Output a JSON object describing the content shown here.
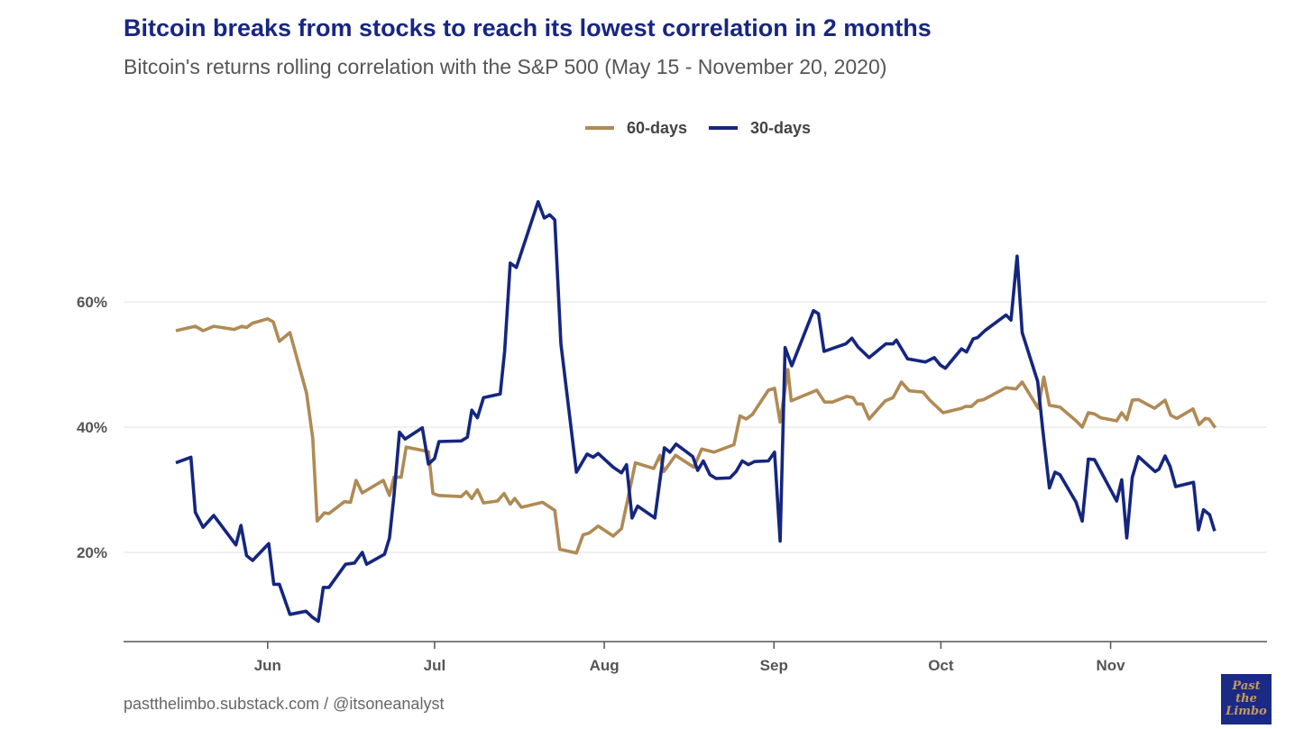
{
  "header": {
    "title": "Bitcoin breaks from stocks to reach its lowest correlation in 2 months",
    "subtitle": "Bitcoin's returns rolling correlation with the S&P 500 (May 15 - November 20, 2020)"
  },
  "footer": {
    "source": "pastthelimbo.substack.com / @itsoneanalyst",
    "logo_text": "Past the Limbo"
  },
  "chart_data": {
    "type": "line",
    "title": "Bitcoin breaks from stocks to reach its lowest correlation in 2 months",
    "xlabel": "",
    "ylabel": "",
    "x_unit": "days since May 15, 2020",
    "ylim": [
      5.8,
      78
    ],
    "y_ticks": [
      {
        "value": 20,
        "label": "20%"
      },
      {
        "value": 40,
        "label": "40%"
      },
      {
        "value": 60,
        "label": "60%"
      }
    ],
    "x_ticks": [
      {
        "value": 16.5,
        "label": "Jun"
      },
      {
        "value": 46.5,
        "label": "Jul"
      },
      {
        "value": 77,
        "label": "Aug"
      },
      {
        "value": 107.5,
        "label": "Sep"
      },
      {
        "value": 137.5,
        "label": "Oct"
      },
      {
        "value": 168,
        "label": "Nov"
      }
    ],
    "grid": true,
    "legend_position": "top-center",
    "series": [
      {
        "name": "60-days",
        "color": "#b08a55",
        "points": [
          [
            0,
            55.4
          ],
          [
            3.5,
            56.1
          ],
          [
            4.9,
            55.4
          ],
          [
            6.8,
            56.1
          ],
          [
            10.5,
            55.6
          ],
          [
            11.9,
            56.1
          ],
          [
            12.7,
            55.9
          ],
          [
            13.8,
            56.6
          ],
          [
            16.5,
            57.3
          ],
          [
            17.5,
            56.8
          ],
          [
            18.6,
            53.7
          ],
          [
            20.5,
            55.1
          ],
          [
            23.5,
            45.4
          ],
          [
            24.6,
            38.2
          ],
          [
            25.4,
            25.0
          ],
          [
            26.7,
            26.3
          ],
          [
            27.5,
            26.2
          ],
          [
            30.3,
            28.1
          ],
          [
            31.4,
            28.0
          ],
          [
            32.4,
            31.5
          ],
          [
            33.5,
            29.5
          ],
          [
            37.3,
            31.5
          ],
          [
            38.4,
            29.1
          ],
          [
            39.2,
            32.0
          ],
          [
            40.5,
            32.0
          ],
          [
            41.4,
            36.8
          ],
          [
            45.4,
            36.1
          ],
          [
            46.2,
            29.4
          ],
          [
            47.2,
            29.1
          ],
          [
            51.3,
            28.9
          ],
          [
            52.2,
            29.7
          ],
          [
            53.2,
            28.6
          ],
          [
            54.2,
            30.0
          ],
          [
            55.3,
            27.9
          ],
          [
            57.8,
            28.2
          ],
          [
            59.0,
            29.4
          ],
          [
            60.1,
            27.7
          ],
          [
            60.9,
            28.6
          ],
          [
            62.1,
            27.2
          ],
          [
            65.9,
            28.0
          ],
          [
            68.1,
            26.7
          ],
          [
            69.0,
            20.5
          ],
          [
            72.0,
            19.9
          ],
          [
            73.2,
            22.8
          ],
          [
            74.3,
            23.1
          ],
          [
            75.9,
            24.2
          ],
          [
            78.6,
            22.6
          ],
          [
            80.1,
            23.8
          ],
          [
            82.6,
            34.3
          ],
          [
            85.9,
            33.4
          ],
          [
            87.0,
            35.5
          ],
          [
            87.7,
            32.9
          ],
          [
            89.8,
            35.5
          ],
          [
            93.1,
            33.6
          ],
          [
            94.5,
            36.5
          ],
          [
            96.7,
            36.0
          ],
          [
            100.3,
            37.2
          ],
          [
            101.4,
            41.8
          ],
          [
            102.5,
            41.3
          ],
          [
            103.6,
            42.0
          ],
          [
            106.5,
            45.9
          ],
          [
            107.6,
            46.2
          ],
          [
            108.6,
            40.8
          ],
          [
            110.0,
            49.2
          ],
          [
            110.6,
            44.2
          ],
          [
            115.2,
            45.9
          ],
          [
            116.6,
            44.0
          ],
          [
            118.0,
            44.0
          ],
          [
            120.6,
            44.9
          ],
          [
            121.7,
            44.7
          ],
          [
            122.4,
            43.7
          ],
          [
            123.4,
            43.7
          ],
          [
            124.6,
            41.3
          ],
          [
            127.5,
            44.2
          ],
          [
            128.9,
            44.7
          ],
          [
            130.4,
            47.2
          ],
          [
            131.8,
            45.8
          ],
          [
            134.3,
            45.6
          ],
          [
            135.4,
            44.4
          ],
          [
            137.9,
            42.3
          ],
          [
            141.2,
            43.0
          ],
          [
            141.9,
            43.3
          ],
          [
            143.0,
            43.3
          ],
          [
            144.1,
            44.2
          ],
          [
            145.2,
            44.4
          ],
          [
            149.2,
            46.3
          ],
          [
            151.0,
            46.1
          ],
          [
            152.1,
            47.2
          ],
          [
            155.0,
            43.0
          ],
          [
            156.0,
            48.0
          ],
          [
            157.0,
            43.5
          ],
          [
            158.9,
            43.2
          ],
          [
            161.8,
            41.0
          ],
          [
            162.9,
            40.0
          ],
          [
            164.0,
            42.3
          ],
          [
            165.1,
            42.1
          ],
          [
            166.2,
            41.5
          ],
          [
            169.1,
            41.0
          ],
          [
            170.0,
            42.3
          ],
          [
            170.9,
            41.2
          ],
          [
            171.9,
            44.3
          ],
          [
            173.0,
            44.4
          ],
          [
            175.9,
            43.0
          ],
          [
            177.8,
            44.3
          ],
          [
            178.8,
            41.9
          ],
          [
            179.9,
            41.4
          ],
          [
            182.8,
            42.9
          ],
          [
            183.9,
            40.4
          ],
          [
            185.0,
            41.4
          ],
          [
            185.7,
            41.3
          ],
          [
            186.8,
            39.9
          ]
        ]
      },
      {
        "name": "30-days",
        "color": "#15267f",
        "points": [
          [
            0,
            34.3
          ],
          [
            2.7,
            35.2
          ],
          [
            3.5,
            26.4
          ],
          [
            4.9,
            24.0
          ],
          [
            6.8,
            25.9
          ],
          [
            10.8,
            21.2
          ],
          [
            11.7,
            24.3
          ],
          [
            12.7,
            19.5
          ],
          [
            13.8,
            18.7
          ],
          [
            16.7,
            21.4
          ],
          [
            17.6,
            14.9
          ],
          [
            18.6,
            14.9
          ],
          [
            20.5,
            10.1
          ],
          [
            23.4,
            10.6
          ],
          [
            24.6,
            9.6
          ],
          [
            25.6,
            9.0
          ],
          [
            26.5,
            14.4
          ],
          [
            27.5,
            14.4
          ],
          [
            30.5,
            18.1
          ],
          [
            32.1,
            18.3
          ],
          [
            33.5,
            20.0
          ],
          [
            34.3,
            18.1
          ],
          [
            37.5,
            19.7
          ],
          [
            38.4,
            22.3
          ],
          [
            39.2,
            29.1
          ],
          [
            40.2,
            39.2
          ],
          [
            41.2,
            38.1
          ],
          [
            44.3,
            39.9
          ],
          [
            45.4,
            34.1
          ],
          [
            46.5,
            35.0
          ],
          [
            47.3,
            37.7
          ],
          [
            51.3,
            37.8
          ],
          [
            52.4,
            38.4
          ],
          [
            53.2,
            42.7
          ],
          [
            54.2,
            41.5
          ],
          [
            55.3,
            44.7
          ],
          [
            58.3,
            45.3
          ],
          [
            59.1,
            52.1
          ],
          [
            60.1,
            66.2
          ],
          [
            61.2,
            65.5
          ],
          [
            65.1,
            76.0
          ],
          [
            66.2,
            73.4
          ],
          [
            67.2,
            73.9
          ],
          [
            68.1,
            73.1
          ],
          [
            69.2,
            53.3
          ],
          [
            72.0,
            32.8
          ],
          [
            73.9,
            35.7
          ],
          [
            75.0,
            35.2
          ],
          [
            75.9,
            35.8
          ],
          [
            78.6,
            33.6
          ],
          [
            80.1,
            32.7
          ],
          [
            81.0,
            34.0
          ],
          [
            82.0,
            25.5
          ],
          [
            83.0,
            27.4
          ],
          [
            86.1,
            25.5
          ],
          [
            87.8,
            36.7
          ],
          [
            88.8,
            36.0
          ],
          [
            89.9,
            37.3
          ],
          [
            92.9,
            35.3
          ],
          [
            93.8,
            33.1
          ],
          [
            94.8,
            34.6
          ],
          [
            96.0,
            32.4
          ],
          [
            97.1,
            31.8
          ],
          [
            99.6,
            31.9
          ],
          [
            100.7,
            32.9
          ],
          [
            101.8,
            34.6
          ],
          [
            102.9,
            34.0
          ],
          [
            104.0,
            34.5
          ],
          [
            106.5,
            34.6
          ],
          [
            107.6,
            36.0
          ],
          [
            108.6,
            21.8
          ],
          [
            109.5,
            52.7
          ],
          [
            110.7,
            49.8
          ],
          [
            114.6,
            58.6
          ],
          [
            115.5,
            58.1
          ],
          [
            116.5,
            52.1
          ],
          [
            120.4,
            53.3
          ],
          [
            121.5,
            54.2
          ],
          [
            122.6,
            52.8
          ],
          [
            124.6,
            51.1
          ],
          [
            127.6,
            53.3
          ],
          [
            128.9,
            53.3
          ],
          [
            129.5,
            53.9
          ],
          [
            131.5,
            50.9
          ],
          [
            134.7,
            50.4
          ],
          [
            136.3,
            51.1
          ],
          [
            137.4,
            49.9
          ],
          [
            138.3,
            49.4
          ],
          [
            141.2,
            52.5
          ],
          [
            142.1,
            52.0
          ],
          [
            143.3,
            54.1
          ],
          [
            144.1,
            54.3
          ],
          [
            145.4,
            55.4
          ],
          [
            149.2,
            57.9
          ],
          [
            150.1,
            57.1
          ],
          [
            151.2,
            67.3
          ],
          [
            152.1,
            55.1
          ],
          [
            154.9,
            47.3
          ],
          [
            155.8,
            39.6
          ],
          [
            157.0,
            30.3
          ],
          [
            158.0,
            32.8
          ],
          [
            158.9,
            32.4
          ],
          [
            161.8,
            28.0
          ],
          [
            162.9,
            25.0
          ],
          [
            164.0,
            34.9
          ],
          [
            165.1,
            34.8
          ],
          [
            169.1,
            28.2
          ],
          [
            170.0,
            31.6
          ],
          [
            170.9,
            22.3
          ],
          [
            171.9,
            32.0
          ],
          [
            173.0,
            35.3
          ],
          [
            176.0,
            32.9
          ],
          [
            176.7,
            33.3
          ],
          [
            177.8,
            35.4
          ],
          [
            178.7,
            33.7
          ],
          [
            179.7,
            30.5
          ],
          [
            182.9,
            31.2
          ],
          [
            183.8,
            23.6
          ],
          [
            184.7,
            26.8
          ],
          [
            185.8,
            26.0
          ],
          [
            186.7,
            23.4
          ]
        ]
      }
    ]
  }
}
